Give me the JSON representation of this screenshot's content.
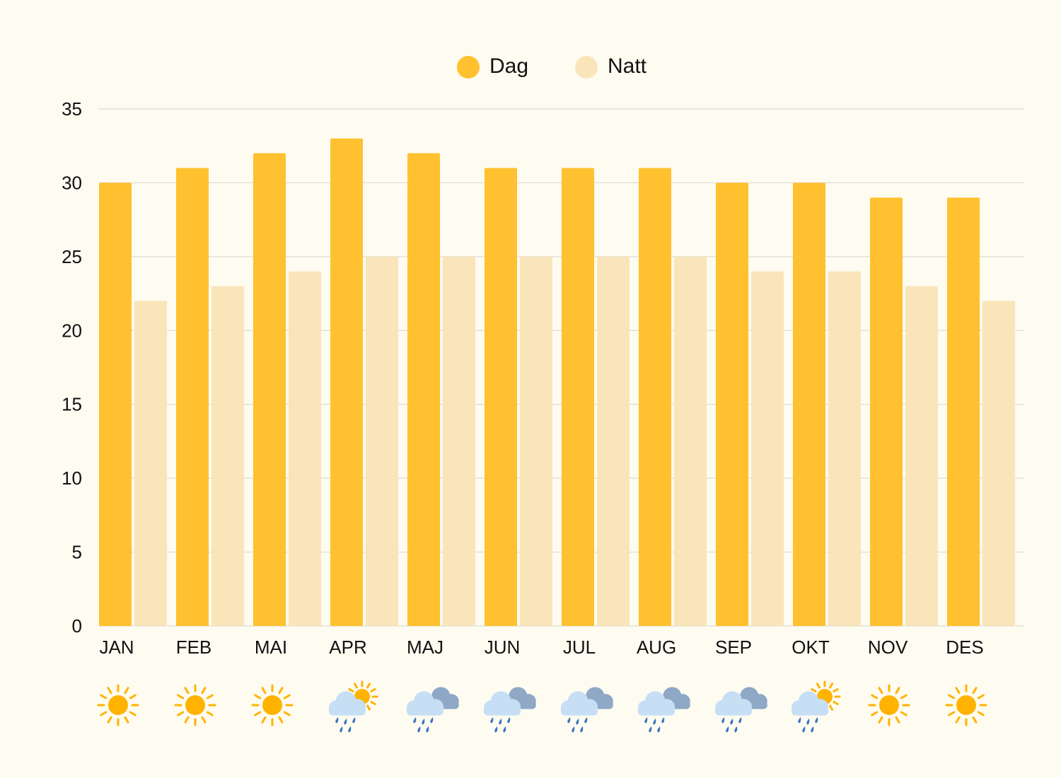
{
  "chart_data": {
    "type": "bar",
    "categories": [
      "JAN",
      "FEB",
      "MAI",
      "APR",
      "MAJ",
      "JUN",
      "JUL",
      "AUG",
      "SEP",
      "OKT",
      "NOV",
      "DES"
    ],
    "series": [
      {
        "name": "Dag",
        "color": "#ffc12f",
        "values": [
          30,
          31,
          32,
          33,
          32,
          31,
          31,
          31,
          30,
          30,
          29,
          29
        ]
      },
      {
        "name": "Natt",
        "color": "#f9e5b9",
        "values": [
          22,
          23,
          24,
          25,
          25,
          25,
          25,
          25,
          24,
          24,
          23,
          22
        ]
      }
    ],
    "ylim": [
      0,
      35
    ],
    "yticks": [
      0,
      5,
      10,
      15,
      20,
      25,
      30,
      35
    ],
    "grid": true,
    "legend_position": "top-center",
    "weather_icons": [
      "sun-icon",
      "sun-icon",
      "sun-icon",
      "sun-rain-cloud-icon",
      "rain-cloud-icon",
      "rain-cloud-icon",
      "rain-cloud-icon",
      "rain-cloud-icon",
      "rain-cloud-icon",
      "sun-rain-cloud-icon",
      "sun-icon",
      "sun-icon"
    ]
  },
  "colors": {
    "background": "#fefbf0",
    "grid": "#dcdcd4",
    "sun": "#ffb300",
    "cloud_light": "#c6dff5",
    "cloud_dark": "#8ea8c6",
    "rain": "#3a73c4"
  }
}
